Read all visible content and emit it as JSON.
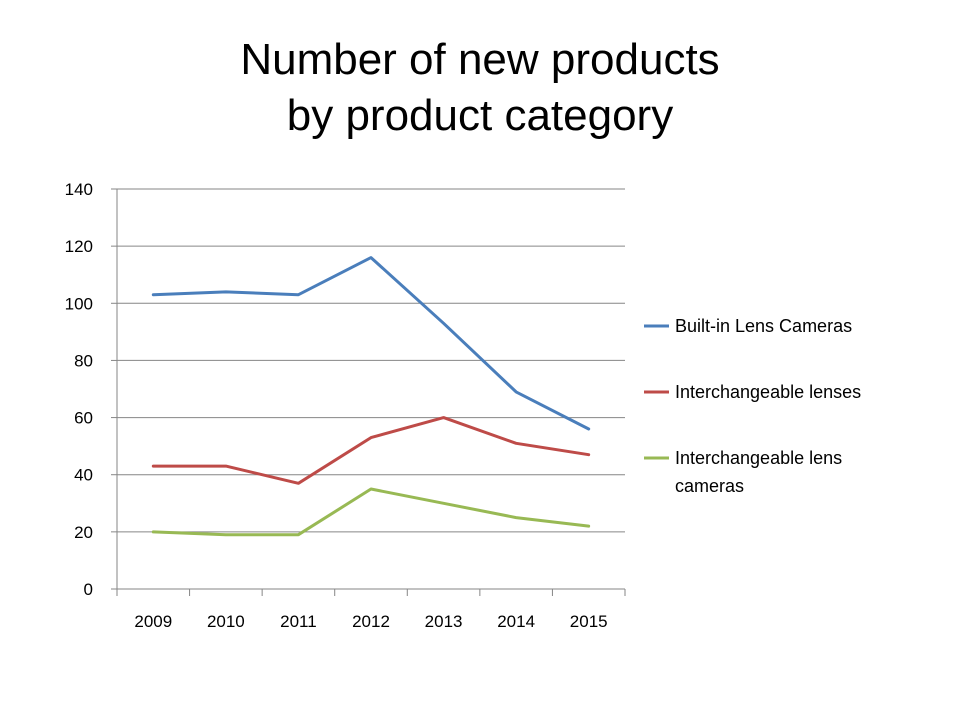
{
  "slide": {
    "title_line1": "Number of new products",
    "title_line2": "by product category"
  },
  "chart_data": {
    "type": "line",
    "title": "Number of new products by product category",
    "xlabel": "",
    "ylabel": "",
    "categories": [
      "2009",
      "2010",
      "2011",
      "2012",
      "2013",
      "2014",
      "2015"
    ],
    "ylim": [
      0,
      140
    ],
    "yticks": [
      0,
      20,
      40,
      60,
      80,
      100,
      120,
      140
    ],
    "grid": true,
    "legend_position": "right",
    "series": [
      {
        "name": "Built-in Lens Cameras",
        "color": "#4A7EBB",
        "values": [
          103,
          104,
          103,
          116,
          93,
          69,
          56
        ]
      },
      {
        "name": "Interchangeable lenses",
        "color": "#BE4B48",
        "values": [
          43,
          43,
          37,
          53,
          60,
          51,
          47
        ]
      },
      {
        "name": "Interchangeable lens cameras",
        "color": "#98B954",
        "values": [
          20,
          19,
          19,
          35,
          30,
          25,
          22
        ]
      }
    ]
  },
  "legend": {
    "items": [
      {
        "line1": "Built-in Lens Cameras",
        "line2": ""
      },
      {
        "line1": "Interchangeable lenses",
        "line2": ""
      },
      {
        "line1": "Interchangeable lens",
        "line2": "cameras"
      }
    ]
  }
}
